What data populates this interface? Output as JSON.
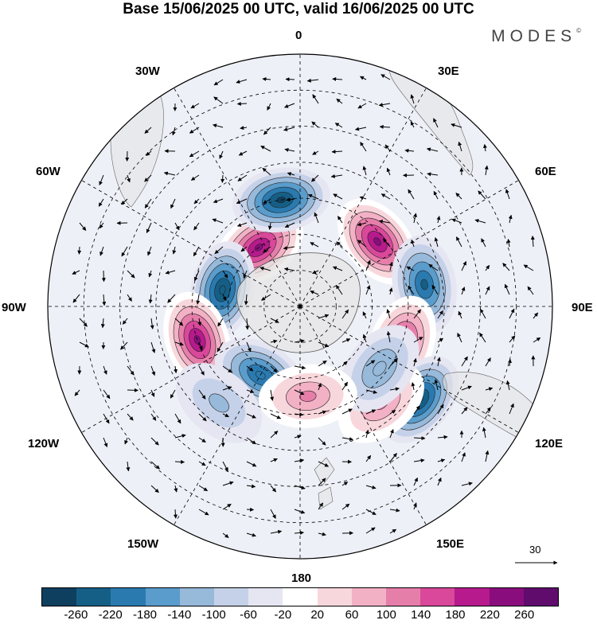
{
  "title": "Base 15/06/2025 00 UTC, valid 16/06/2025 00 UTC",
  "brand": {
    "text": "MODES",
    "mark": "©"
  },
  "longitude_labels": {
    "top": "0",
    "bottom": "180",
    "lon30w": "30W",
    "lon30e": "30E",
    "lon60w": "60W",
    "lon60e": "60E",
    "lon90w": "90W",
    "lon90e": "90E",
    "lon120w": "120W",
    "lon120e": "120E",
    "lon150w": "150W",
    "lon150e": "150E"
  },
  "vector_scale": {
    "value": "30",
    "icon": "arrow-right-icon"
  },
  "colorbar": {
    "colors": [
      "#0f3f5f",
      "#155f86",
      "#2a7ab0",
      "#5a9ccb",
      "#97b9da",
      "#c5d1e8",
      "#e5e6f2",
      "#ffffff",
      "#f8d7dc",
      "#f3b1c6",
      "#e67eaa",
      "#d9489a",
      "#b61a8c",
      "#8a0d7d",
      "#5f0c6d"
    ],
    "ticks": [
      "-260",
      "-220",
      "-180",
      "-140",
      "-100",
      "-60",
      "-20",
      "20",
      "60",
      "100",
      "140",
      "180",
      "220",
      "260"
    ]
  },
  "anomalies": [
    {
      "lat": -70,
      "lon": -35,
      "value": 250
    },
    {
      "lat": -60,
      "lon": -10,
      "value": -250
    },
    {
      "lat": -62,
      "lon": 50,
      "value": 250
    },
    {
      "lat": -55,
      "lon": 80,
      "value": -220
    },
    {
      "lat": -60,
      "lon": 110,
      "value": 200
    },
    {
      "lat": -48,
      "lon": 128,
      "value": -230
    },
    {
      "lat": -55,
      "lon": 140,
      "value": 140
    },
    {
      "lat": -62,
      "lon": 128,
      "value": -120
    },
    {
      "lat": -68,
      "lon": -78,
      "value": -240
    },
    {
      "lat": -60,
      "lon": -108,
      "value": 240
    },
    {
      "lat": -68,
      "lon": -150,
      "value": -200
    },
    {
      "lat": -65,
      "lon": 175,
      "value": 140
    },
    {
      "lat": -55,
      "lon": -140,
      "value": -100
    }
  ]
}
